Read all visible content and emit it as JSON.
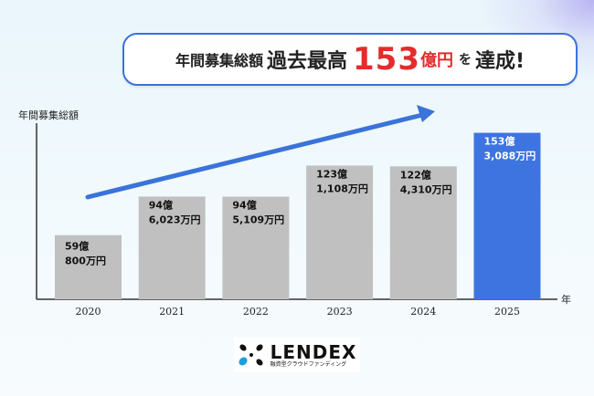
{
  "banner": {
    "part1": "年間募集総額",
    "part2": "過去最高",
    "part3": "153",
    "part4": "億円",
    "part5": "を",
    "part6": "達成!"
  },
  "chart_data": {
    "type": "bar",
    "ylabel": "年間募集総額",
    "xlabel": "年",
    "unit": "億円",
    "categories": [
      "2020",
      "2021",
      "2022",
      "2023",
      "2024",
      "2025"
    ],
    "values": [
      59.08,
      94.6023,
      94.5109,
      123.1108,
      122.431,
      153.3088
    ],
    "data_labels": [
      [
        "59億",
        "800万円"
      ],
      [
        "94億",
        "6,023万円"
      ],
      [
        "94億",
        "5,109万円"
      ],
      [
        "123億",
        "1,108万円"
      ],
      [
        "122億",
        "4,310万円"
      ],
      [
        "153億",
        "3,088万円"
      ]
    ],
    "colors": {
      "default": "#c0c0c0",
      "highlight": "#3d74e0",
      "arrow": "#3a73d9"
    },
    "highlight_index": 5,
    "ylim": [
      0,
      160
    ],
    "grid": false,
    "trend_arrow": true
  },
  "logo": {
    "name": "LENDEX",
    "tagline": "融資型クラウドファンディング",
    "colors": {
      "blue": "#1aa0e0",
      "dark": "#111111"
    }
  }
}
